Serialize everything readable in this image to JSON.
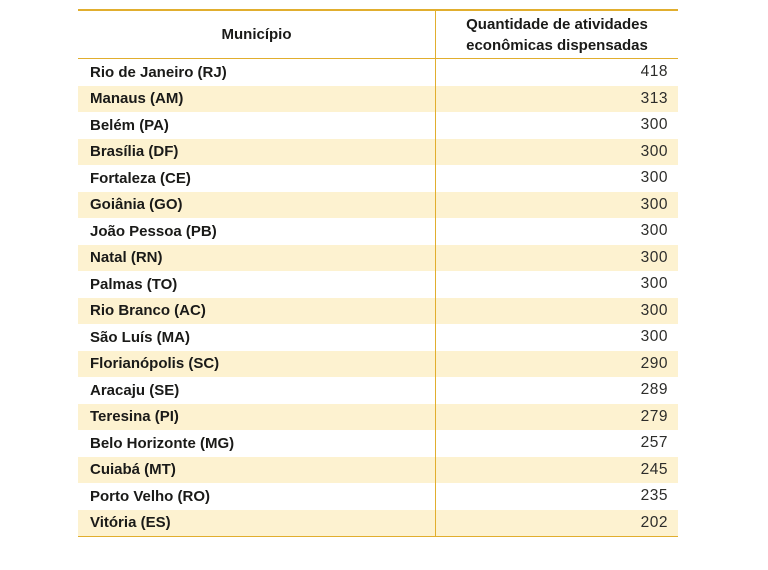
{
  "theme": {
    "background": "#ffffff",
    "border_gold": "#e1ae2e",
    "row_highlight": "#fdf2d0",
    "header_text": "#1a1a18",
    "body_text": "#1a1a18",
    "value_text": "#2d2d2b"
  },
  "chart_data": {
    "type": "table",
    "columns": {
      "municipality": "Município",
      "quantity": "Quantidade de atividades econômicas dispensadas",
      "quantity_line1": "Quantidade de atividades",
      "quantity_line2": "econômicas dispensadas"
    },
    "rows": [
      {
        "municipality": "Rio de Janeiro (RJ)",
        "value": 418
      },
      {
        "municipality": "Manaus (AM)",
        "value": 313
      },
      {
        "municipality": "Belém (PA)",
        "value": 300
      },
      {
        "municipality": "Brasília (DF)",
        "value": 300
      },
      {
        "municipality": "Fortaleza (CE)",
        "value": 300
      },
      {
        "municipality": "Goiânia (GO)",
        "value": 300
      },
      {
        "municipality": "João Pessoa (PB)",
        "value": 300
      },
      {
        "municipality": "Natal (RN)",
        "value": 300
      },
      {
        "municipality": "Palmas (TO)",
        "value": 300
      },
      {
        "municipality": "Rio Branco (AC)",
        "value": 300
      },
      {
        "municipality": "São Luís (MA)",
        "value": 300
      },
      {
        "municipality": "Florianópolis (SC)",
        "value": 290
      },
      {
        "municipality": "Aracaju (SE)",
        "value": 289
      },
      {
        "municipality": "Teresina (PI)",
        "value": 279
      },
      {
        "municipality": "Belo Horizonte (MG)",
        "value": 257
      },
      {
        "municipality": "Cuiabá (MT)",
        "value": 245
      },
      {
        "municipality": "Porto Velho (RO)",
        "value": 235
      },
      {
        "municipality": "Vitória (ES)",
        "value": 202
      }
    ]
  }
}
